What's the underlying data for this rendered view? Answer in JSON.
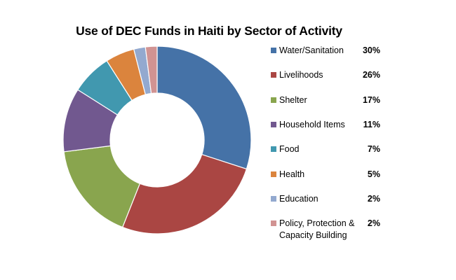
{
  "chart_data": {
    "type": "pie",
    "variant": "donut",
    "title": "Use of DEC Funds in Haiti by Sector of Activity",
    "legend_position": "right",
    "categories": [
      "Water/Sanitation",
      "Livelihoods",
      "Shelter",
      "Household Items",
      "Food",
      "Health",
      "Education",
      "Policy, Protection & Capacity Building"
    ],
    "values": [
      30,
      26,
      17,
      11,
      7,
      5,
      2,
      2
    ],
    "value_labels": [
      "30%",
      "26%",
      "17%",
      "11%",
      "7%",
      "5%",
      "2%",
      "2%"
    ],
    "colors": [
      "#4572A7",
      "#AA4643",
      "#89A54E",
      "#71588F",
      "#4198AF",
      "#DB843D",
      "#93A9CF",
      "#D19392"
    ]
  }
}
